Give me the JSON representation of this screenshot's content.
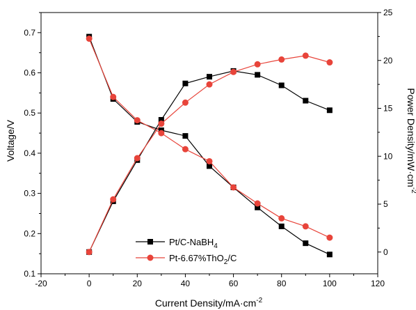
{
  "chart_data": {
    "type": "line",
    "xlabel": "Current Density/mA·cm",
    "xlabel_sup": "-2",
    "ylabel_left": "Voltage/V",
    "ylabel_right": "Power Density/mW·cm",
    "ylabel_right_sup": "-2",
    "xlim": [
      -20,
      120
    ],
    "ylim_left": [
      0.1,
      0.75
    ],
    "ylim_right": [
      -2.27,
      25
    ],
    "x_ticks": [
      -20,
      0,
      20,
      40,
      60,
      80,
      100,
      120
    ],
    "y_left_ticks": [
      "0.1",
      "0.2",
      "0.3",
      "0.4",
      "0.5",
      "0.6",
      "0.7"
    ],
    "y_right_ticks": [
      "0",
      "5",
      "10",
      "15",
      "20",
      "25"
    ],
    "legend": {
      "position": "bottom-left",
      "entries": [
        {
          "label": "Pt/C-NaBH",
          "sub": "4",
          "label_tail": "",
          "color": "#000000",
          "marker": "square"
        },
        {
          "label": "Pt-6.67%ThO",
          "sub": "2",
          "label_tail": "/C",
          "color": "#e8443a",
          "marker": "circle"
        }
      ]
    },
    "series": [
      {
        "axis": "left",
        "color": "#000000",
        "marker": "square",
        "x": [
          0,
          10,
          20,
          30,
          40,
          50,
          60,
          70,
          80,
          90,
          100
        ],
        "y": [
          0.69,
          0.535,
          0.478,
          0.457,
          0.443,
          0.368,
          0.315,
          0.265,
          0.218,
          0.176,
          0.148
        ]
      },
      {
        "axis": "left",
        "color": "#e8443a",
        "marker": "circle",
        "x": [
          0,
          10,
          20,
          30,
          40,
          50,
          60,
          70,
          80,
          90,
          100
        ],
        "y": [
          0.685,
          0.54,
          0.482,
          0.45,
          0.41,
          0.38,
          0.315,
          0.275,
          0.238,
          0.218,
          0.19
        ]
      },
      {
        "axis": "right",
        "color": "#000000",
        "marker": "square",
        "x": [
          0,
          10,
          20,
          30,
          40,
          50,
          60,
          70,
          80,
          90,
          100
        ],
        "y": [
          0,
          5.3,
          9.6,
          13.8,
          17.6,
          18.3,
          18.9,
          18.5,
          17.4,
          15.8,
          14.8
        ]
      },
      {
        "axis": "right",
        "color": "#e8443a",
        "marker": "circle",
        "x": [
          0,
          10,
          20,
          30,
          40,
          50,
          60,
          70,
          80,
          90,
          100
        ],
        "y": [
          0,
          5.5,
          9.8,
          13.4,
          15.6,
          17.5,
          18.8,
          19.6,
          20.1,
          20.5,
          19.8
        ]
      }
    ]
  }
}
